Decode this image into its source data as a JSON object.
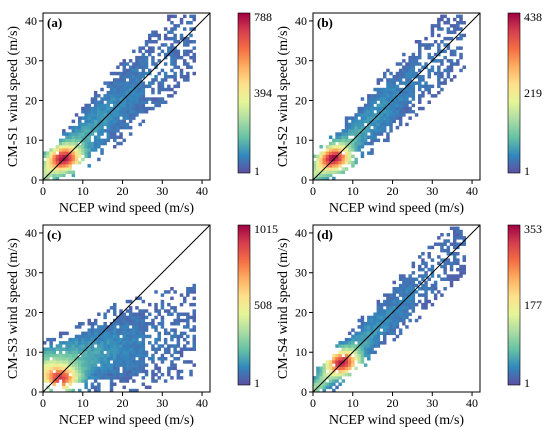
{
  "colormap": [
    "#5e4fa2",
    "#3288bd",
    "#66c2a5",
    "#abdda4",
    "#e6f598",
    "#fee08b",
    "#fdae61",
    "#f46d43",
    "#d53e4f",
    "#9e0142"
  ],
  "chart_data": [
    {
      "type": "heatmap",
      "panel_label": "(a)",
      "xlabel": "NCEP wind speed (m/s)",
      "ylabel": "CM-S1 wind speed (m/s)",
      "xlim": [
        0,
        42
      ],
      "ylim": [
        0,
        42
      ],
      "xticks": [
        0,
        10,
        20,
        30,
        40
      ],
      "yticks": [
        0,
        10,
        20,
        30,
        40
      ],
      "colorbar": {
        "min": 1,
        "mid": 394,
        "max": 788,
        "tick_labels": [
          "788",
          "394",
          "1"
        ]
      },
      "reference_line": "1:1",
      "density_peak": [
        5,
        5
      ],
      "cluster": {
        "slope": 0.95,
        "intercept": 0.8,
        "spread": 4.0,
        "x_max": 38
      }
    },
    {
      "type": "heatmap",
      "panel_label": "(b)",
      "xlabel": "NCEP wind speed (m/s)",
      "ylabel": "CM-S2 wind speed (m/s)",
      "xlim": [
        0,
        42
      ],
      "ylim": [
        0,
        42
      ],
      "xticks": [
        0,
        10,
        20,
        30,
        40
      ],
      "yticks": [
        0,
        10,
        20,
        30,
        40
      ],
      "colorbar": {
        "min": 1,
        "mid": 219,
        "max": 438,
        "tick_labels": [
          "438",
          "219",
          "1"
        ]
      },
      "reference_line": "1:1",
      "density_peak": [
        5,
        5
      ],
      "cluster": {
        "slope": 0.95,
        "intercept": 1.0,
        "spread": 3.6,
        "x_max": 38
      }
    },
    {
      "type": "heatmap",
      "panel_label": "(c)",
      "xlabel": "NCEP wind speed (m/s)",
      "ylabel": "CM-S3 wind speed (m/s)",
      "xlim": [
        0,
        42
      ],
      "ylim": [
        0,
        42
      ],
      "xticks": [
        0,
        10,
        20,
        30,
        40
      ],
      "yticks": [
        0,
        10,
        20,
        30,
        40
      ],
      "colorbar": {
        "min": 1,
        "mid": 508,
        "max": 1015,
        "tick_labels": [
          "1015",
          "508",
          "1"
        ]
      },
      "reference_line": "1:1",
      "density_peak": [
        4,
        3
      ],
      "cluster": {
        "slope": 0.25,
        "intercept": 6.0,
        "spread": 4.5,
        "x_max": 38
      }
    },
    {
      "type": "heatmap",
      "panel_label": "(d)",
      "xlabel": "NCEP wind speed (m/s)",
      "ylabel": "CM-S4 wind speed (m/s)",
      "xlim": [
        0,
        42
      ],
      "ylim": [
        0,
        42
      ],
      "xticks": [
        0,
        10,
        20,
        30,
        40
      ],
      "yticks": [
        0,
        10,
        20,
        30,
        40
      ],
      "colorbar": {
        "min": 1,
        "mid": 177,
        "max": 353,
        "tick_labels": [
          "353",
          "177",
          "1"
        ]
      },
      "reference_line": "1:1",
      "density_peak": [
        7,
        7
      ],
      "cluster": {
        "slope": 0.98,
        "intercept": 0.4,
        "spread": 3.0,
        "x_max": 38
      }
    }
  ]
}
